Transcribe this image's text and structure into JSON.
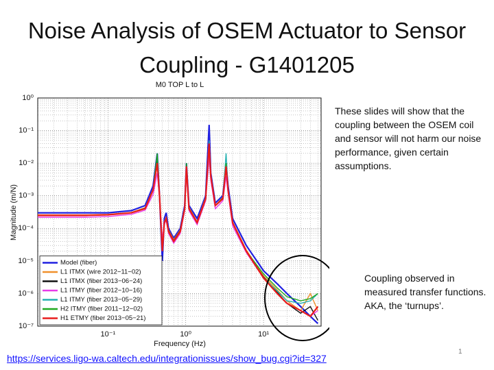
{
  "slide": {
    "title": "Noise Analysis of OSEM Actuator to Sensor Coupling - G1401205",
    "note1": "These slides will show that the coupling between the OSEM coil and sensor will not harm our noise performance, given certain assumptions.",
    "note2": [
      "Coupling observed in measured transfer functions.",
      "AKA, the ‘turnups’."
    ],
    "page_number": "1",
    "link": "https://services.ligo-wa.caltech.edu/integrationissues/show_bug.cgi?id=327"
  },
  "chart_data": {
    "type": "line",
    "title": "M0 TOP L to L",
    "x_label": "Frequency (Hz)",
    "y_label": "Magnitude (m/N)",
    "x_log": true,
    "y_log": true,
    "grid": true,
    "minor_grid": true,
    "legend": "lower-left",
    "xlim": [
      0.0125,
      55
    ],
    "ylim": [
      1e-07,
      1
    ],
    "xticks": [
      {
        "value": 0.1,
        "label": "10⁻¹"
      },
      {
        "value": 1,
        "label": "10⁰"
      },
      {
        "value": 10,
        "label": "10¹"
      }
    ],
    "yticks": [
      {
        "value": 1e-07,
        "label": "10⁻⁷"
      },
      {
        "value": 1e-06,
        "label": "10⁻⁶"
      },
      {
        "value": 1e-05,
        "label": "10⁻⁵"
      },
      {
        "value": 0.0001,
        "label": "10⁻⁴"
      },
      {
        "value": 0.001,
        "label": "10⁻³"
      },
      {
        "value": 0.01,
        "label": "10⁻²"
      },
      {
        "value": 0.1,
        "label": "10⁻¹"
      },
      {
        "value": 1,
        "label": "10⁰"
      }
    ],
    "x": [
      0.0125,
      0.05,
      0.1,
      0.2,
      0.3,
      0.38,
      0.43,
      0.46,
      0.5,
      0.53,
      0.56,
      0.6,
      0.7,
      0.85,
      0.97,
      1.02,
      1.1,
      1.4,
      1.8,
      2.0,
      2.1,
      2.4,
      3.0,
      3.3,
      3.5,
      4,
      6,
      10,
      15,
      20,
      30,
      40,
      50
    ],
    "series": [
      {
        "name": "Model (fiber)",
        "color": "#1f1fe0",
        "values": [
          0.0003,
          0.0003,
          0.0003,
          0.00035,
          0.0005,
          0.002,
          0.02,
          0.001,
          1e-05,
          0.0002,
          0.0003,
          0.0001,
          5e-05,
          0.0001,
          0.0005,
          0.01,
          0.0005,
          0.0002,
          0.001,
          0.15,
          0.005,
          0.0006,
          0.001,
          0.01,
          0.002,
          0.0002,
          3e-05,
          5e-06,
          2e-06,
          1e-06,
          4e-07,
          2e-07,
          1.2e-07
        ]
      },
      {
        "name": "L1 ITMX  (wire 2012−11−02)",
        "color": "#f0902a",
        "values": [
          0.00026,
          0.00026,
          0.00027,
          0.00031,
          0.00043,
          0.0016,
          0.012,
          0.0009,
          3e-05,
          0.00016,
          0.00022,
          9e-05,
          4.5e-05,
          9e-05,
          0.00045,
          0.009,
          0.00045,
          0.00016,
          0.0009,
          0.05,
          0.004,
          0.0005,
          0.0009,
          0.009,
          0.0016,
          0.00016,
          2.2e-05,
          3.5e-06,
          1.3e-06,
          6e-07,
          3e-07,
          1e-06,
          3e-07
        ]
      },
      {
        "name": "L1 ITMX  (fiber 2013−06−24)",
        "color": "#111111",
        "values": [
          0.00025,
          0.00025,
          0.00026,
          0.0003,
          0.00042,
          0.0015,
          0.015,
          0.001,
          2e-05,
          0.00015,
          0.00021,
          8.5e-05,
          4.2e-05,
          8.5e-05,
          0.00042,
          0.01,
          0.00042,
          0.00015,
          0.00085,
          0.045,
          0.004,
          0.0005,
          0.00085,
          0.01,
          0.0015,
          0.00015,
          2e-05,
          3.2e-06,
          1.1e-06,
          5e-07,
          2.5e-07,
          4e-07,
          1.5e-07
        ]
      },
      {
        "name": "L1 ITMY  (fiber 2012−10−16)",
        "color": "#e83ae8",
        "values": [
          0.00022,
          0.00022,
          0.00023,
          0.00027,
          0.00036,
          0.0011,
          0.005,
          0.0008,
          5e-05,
          0.00013,
          0.00018,
          7e-05,
          3.5e-05,
          7e-05,
          0.00035,
          0.005,
          0.00035,
          0.00013,
          0.0007,
          0.015,
          0.003,
          0.0004,
          0.0007,
          0.004,
          0.0012,
          0.00012,
          1.8e-05,
          3e-06,
          1e-06,
          5e-07,
          3e-07,
          2e-07,
          3e-07
        ]
      },
      {
        "name": "L1 ITMY  (fiber 2013−05−29)",
        "color": "#22b0b0",
        "values": [
          0.00025,
          0.00025,
          0.00026,
          0.0003,
          0.00041,
          0.0015,
          0.018,
          0.001,
          2e-05,
          0.00015,
          0.0002,
          8e-05,
          4e-05,
          8e-05,
          0.0004,
          0.01,
          0.0004,
          0.00015,
          0.0008,
          0.05,
          0.004,
          0.0005,
          0.0008,
          0.02,
          0.0015,
          0.00015,
          2e-05,
          3e-06,
          1.2e-06,
          6e-07,
          5e-07,
          6e-07,
          1e-06
        ]
      },
      {
        "name": "H2 ITMY  (fiber 2011−12−02)",
        "color": "#1ea81e",
        "values": [
          0.00025,
          0.00025,
          0.00026,
          0.0003,
          0.0004,
          0.0015,
          0.02,
          0.001,
          2e-05,
          0.00015,
          0.0002,
          8e-05,
          4e-05,
          8e-05,
          0.0004,
          0.01,
          0.0004,
          0.00015,
          0.0008,
          0.03,
          0.004,
          0.0005,
          0.0008,
          0.01,
          0.0015,
          0.00015,
          2e-05,
          4e-06,
          1.5e-06,
          8e-07,
          6e-07,
          7e-07,
          1e-06
        ]
      },
      {
        "name": "H1 ETMY  (fiber 2013−05−21)",
        "color": "#e81c1c",
        "values": [
          0.00025,
          0.00025,
          0.00026,
          0.0003,
          0.0004,
          0.0015,
          0.01,
          0.001,
          2e-05,
          0.00015,
          0.0002,
          8e-05,
          4e-05,
          8e-05,
          0.0004,
          0.008,
          0.0004,
          0.00015,
          0.0008,
          0.04,
          0.004,
          0.0005,
          0.0008,
          0.008,
          0.0015,
          0.00015,
          2e-05,
          3e-06,
          1e-06,
          5e-07,
          3e-07,
          2e-07,
          4e-07
        ]
      }
    ]
  }
}
